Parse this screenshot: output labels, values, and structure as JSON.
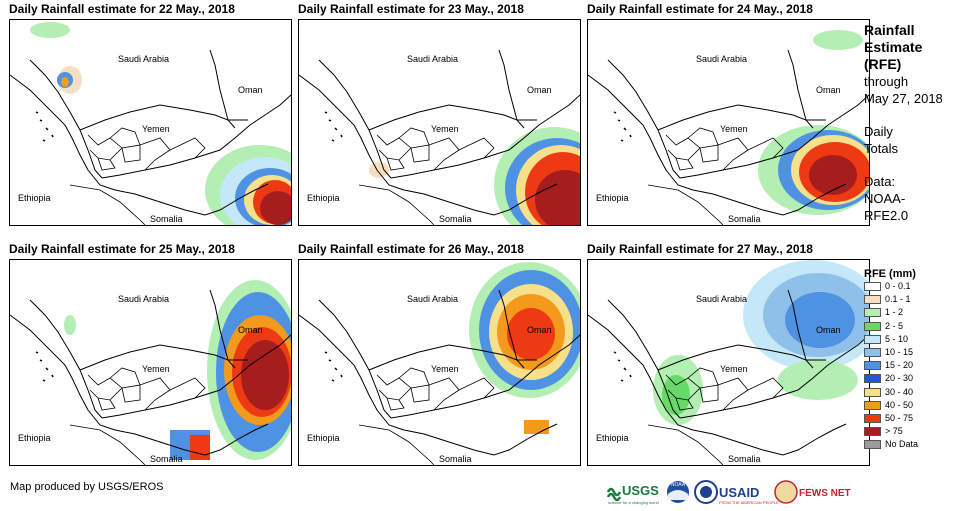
{
  "panels": [
    {
      "title": "Daily Rainfall estimate for 22 May., 2018",
      "storm": "s22"
    },
    {
      "title": "Daily Rainfall estimate for 23 May., 2018",
      "storm": "s23"
    },
    {
      "title": "Daily Rainfall estimate for 24 May., 2018",
      "storm": "s24"
    },
    {
      "title": "Daily Rainfall estimate for 25 May., 2018",
      "storm": "s25"
    },
    {
      "title": "Daily Rainfall estimate for 26 May., 2018",
      "storm": "s26"
    },
    {
      "title": "Daily Rainfall estimate for 27 May., 2018",
      "storm": "s27"
    }
  ],
  "countries": {
    "saudi_arabia": "Saudi Arabia",
    "oman": "Oman",
    "yemen": "Yemen",
    "ethiopia": "Ethiopia",
    "somalia": "Somalia"
  },
  "sidebar": {
    "title_line1": "Rainfall",
    "title_line2": "Estimate",
    "title_line3": "(RFE)",
    "through": "through",
    "date": "May 27, 2018",
    "daily_line1": "Daily",
    "daily_line2": "Totals",
    "data_label": "Data:",
    "data_line1": "NOAA-",
    "data_line2": "RFE2.0"
  },
  "legend": {
    "title": "RFE (mm)",
    "items": [
      {
        "label": "0 - 0.1",
        "color": "#ffffff"
      },
      {
        "label": "0.1 - 1",
        "color": "#f5dfc2"
      },
      {
        "label": "1 - 2",
        "color": "#b3eeb3"
      },
      {
        "label": "2 - 5",
        "color": "#66d966"
      },
      {
        "label": "5 - 10",
        "color": "#c4e8f7"
      },
      {
        "label": "10 - 15",
        "color": "#8fc0ea"
      },
      {
        "label": "15 - 20",
        "color": "#4f92e3"
      },
      {
        "label": "20 - 30",
        "color": "#2358d4"
      },
      {
        "label": "30 - 40",
        "color": "#f7e08c"
      },
      {
        "label": "40 - 50",
        "color": "#f39a1d"
      },
      {
        "label": "50 - 75",
        "color": "#ee3a14"
      },
      {
        "label": "> 75",
        "color": "#a61d1d"
      },
      {
        "label": "No Data",
        "color": "#9b9b9b"
      }
    ]
  },
  "footer": {
    "credit": "Map produced by USGS/EROS",
    "logos": {
      "usgs": "USGS",
      "usgs_tagline": "science for a changing world",
      "noaa": "NOAA",
      "usaid": "USAID",
      "usaid_tagline": "FROM THE AMERICAN PEOPLE",
      "fewsnet": "FEWS NET"
    }
  }
}
